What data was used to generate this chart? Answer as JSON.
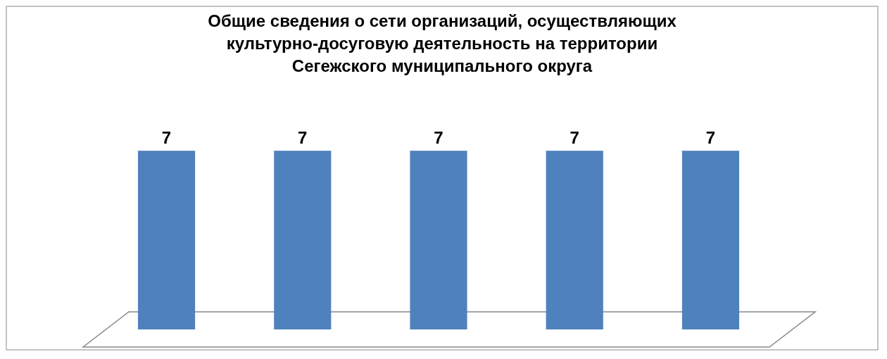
{
  "chart_data": {
    "type": "bar",
    "title": "Общие сведения о сети организаций, осуществляющих культурно-досуговую деятельность на территории Сегежского муниципального округа",
    "categories": [
      null,
      null,
      null,
      null,
      null
    ],
    "values": [
      7,
      7,
      7,
      7,
      7
    ],
    "color": "#4f81bd",
    "data_labels": true
  }
}
